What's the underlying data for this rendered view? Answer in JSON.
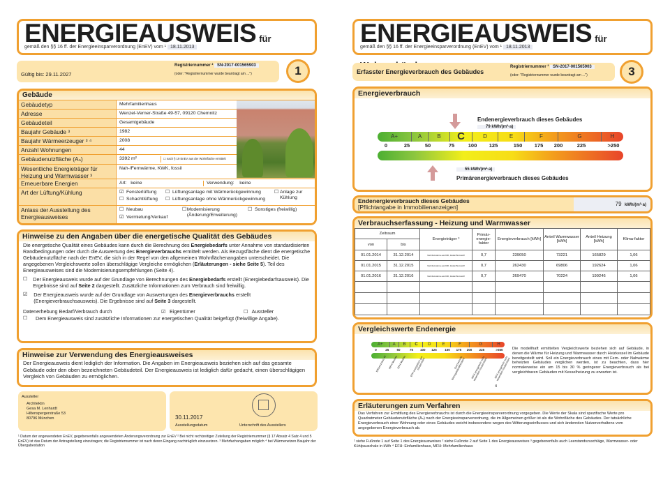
{
  "page1": {
    "title": "ENERGIEAUSWEIS",
    "title_suffix": "für Wohngebäude",
    "subtitle": "gemäß den §§ 16 ff. der Energieeinsparverordnung (EnEV) vom ¹",
    "enev_date": "18.11.2013",
    "valid_until": "Gültig bis: 29.11.2027",
    "reg_label": "Registriernummer ²",
    "reg_number": "SN-2017-001565903",
    "reg_note": "(oder: \"Registriernummer wurde beantragt am ...\")",
    "page_number": "1",
    "building": {
      "heading": "Gebäude",
      "rows": [
        {
          "label": "Gebäudetyp",
          "value": "Mehrfamilienhaus"
        },
        {
          "label": "Adresse",
          "value": "Wenzel-Verner-Straße 49-57, 09120 Chemnitz"
        },
        {
          "label": "Gebäudeteil",
          "value": "Gesamtgebäude"
        },
        {
          "label": "Baujahr Gebäude ³",
          "value": "1982"
        },
        {
          "label": "Baujahr Wärmeerzeuger ³ ⁴",
          "value": "2008"
        },
        {
          "label": "Anzahl Wohnungen",
          "value": "44"
        },
        {
          "label": "Gebäudenutzfläche (Aₙ)",
          "value": "3392 m²",
          "note": "nach § 19 EnEV aus der Wohnfläche ermittelt",
          "note_checked": false
        },
        {
          "label": "Wesentliche Energieträger für Heizung und Warmwasser ³",
          "value": "Nah-/Fernwärme, KWK, fossil"
        }
      ],
      "renewable": {
        "label": "Erneuerbare Energien",
        "art_label": "Art:",
        "art": "keine",
        "use_label": "Verwendung:",
        "use": "keine"
      },
      "ventilation": {
        "label": "Art der Lüftung/Kühlung",
        "options": [
          {
            "label": "Fensterlüftung",
            "checked": true
          },
          {
            "label": "Lüftungsanlage mit Wärmerückgewinnung",
            "checked": false
          },
          {
            "label": "Anlage zur Kühlung",
            "checked": false
          },
          {
            "label": "Schachtlüftung",
            "checked": false
          },
          {
            "label": "Lüftungsanlage ohne Wärmerückgewinnung",
            "checked": false
          }
        ]
      },
      "occasion": {
        "label": "Anlass der Ausstellung des Energieausweises",
        "options": [
          {
            "label": "Neubau",
            "checked": false
          },
          {
            "label": "Modernisierung (Änderung/Erweiterung)",
            "checked": false
          },
          {
            "label": "Sonstiges (freiwillig)",
            "checked": false
          },
          {
            "label": "Vermietung/Verkauf",
            "checked": true
          }
        ]
      }
    },
    "notes": {
      "heading": "Hinweise zu den Angaben über die energetische Qualität des Gebäudes",
      "intro": "Die energetische Qualität eines Gebäudes kann durch die Berechnung des Energiebedarfs unter Annahme von standardisierten Randbedingungen oder durch die Auswertung des Energieverbrauchs ermittelt werden. Als Bezugsfläche dient die energetische Gebäudenutzfläche nach der EnEV, die sich in der Regel von den allgemeinen Wohnflächenangaben unterscheidet. Die angegebenen Vergleichswerte sollen überschlägige Vergleiche ermöglichen (Erläuterungen - siehe Seite 5). Teil des Energieausweises sind die Modernisierungsempfehlungen (Seite 4).",
      "option_demand": {
        "checked": false,
        "text": "Der Energieausweis wurde auf der Grundlage von Berechnungen des Energiebedarfs erstellt (Energiebedarfsausweis). Die Ergebnisse sind auf Seite 2 dargestellt. Zusätzliche Informationen zum Verbrauch sind freiwillig."
      },
      "option_consumption": {
        "checked": true,
        "text": "Der Energieausweis wurde auf der Grundlage von Auswertungen des Energieverbrauchs erstellt (Energieverbrauchsausweis). Die Ergebnisse sind auf Seite 3 dargestellt."
      },
      "data_collection": "Datenerhebung Bedarf/Verbrauch durch",
      "owner": "Eigentümer",
      "owner_checked": true,
      "issuer": "Aussteller",
      "issuer_checked": false,
      "additional": "Dem Energieausweis sind zusätzliche Informationen zur energetischen Qualität beigefügt (freiwillige Angabe).",
      "additional_checked": false
    },
    "usage": {
      "heading": "Hinweise zur Verwendung des Energieausweises",
      "text": "Der Energieausweis dient lediglich der Information. Die Angaben im Energieausweis beziehen sich auf das gesamte Gebäude oder den oben bezeichneten Gebäudeteil. Der Energieausweis ist lediglich dafür gedacht, einen überschlägigen Vergleich von Gebäuden zu ermöglichen."
    },
    "issuer": {
      "label": "Aussteller",
      "lines": [
        "Architektin",
        "Gesa M. Lenhardt",
        "Hiltenspergerstraße 53",
        "80796 München"
      ]
    },
    "issue_date": "30.11.2017",
    "issue_date_label": "Ausstellungsdatum",
    "signature_label": "Unterschrift des Ausstellers",
    "footnotes": "¹ Datum der angewendeten EnEV, gegebenenfalls angewendeten Änderungsverordnung zur EnEV   ² Bei nicht rechtzeitiger Zuteilung der Registriernummer (§ 17 Absatz 4 Satz 4 und 5 EnEV) ist das Datum der Antragstellung einzutragen; die Registriernummer ist nach deren Eingang nachträglich einzusetzen.   ³ Mehrfachangaben möglich   ⁴ bei Wärmenetzen Baujahr der Übergabestation"
  },
  "page2": {
    "title": "ENERGIEAUSWEIS",
    "title_suffix": "für Wohngebäude",
    "subtitle": "gemäß den §§ 16 ff. der Energieeinsparverordnung (EnEV) vom ¹",
    "enev_date": "18.11.2013",
    "section_title": "Erfasster Energieverbrauch des Gebäudes",
    "reg_label": "Registriernummer ²",
    "reg_number": "SN-2017-001565903",
    "reg_note": "(oder: \"Registriernummer wurde beantragt am ...\")",
    "page_number": "3",
    "consumption": {
      "heading": "Energieverbrauch",
      "final_label": "Endenergieverbrauch dieses Gebäudes",
      "final_value": 79,
      "final_unit": "kWh/(m²·a)",
      "primary_label": "Primärenergieverbrauch dieses Gebäudes",
      "primary_value": 55,
      "primary_unit": "kWh/(m²·a)",
      "classes": [
        "A+",
        "A",
        "B",
        "C",
        "D",
        "E",
        "F",
        "G",
        "H"
      ],
      "current_class": "C",
      "ticks": [
        "0",
        "25",
        "50",
        "75",
        "100",
        "125",
        "150",
        "175",
        "200",
        "225",
        ">250"
      ]
    },
    "final_box": {
      "title": "Endenergieverbrauch dieses Gebäudes",
      "subtitle": "[Pflichtangabe in Immobilienanzeigen]",
      "value": "79",
      "unit": "kWh/(m²·a)"
    },
    "records": {
      "heading": "Verbrauchserfassung - Heizung und Warmwasser",
      "headers": {
        "period": "Zeitraum",
        "from": "von",
        "to": "bis",
        "carrier": "Energieträger ³",
        "factor": "Primär-energie-faktor",
        "consumption": "Energieverbrauch [kWh]",
        "hot_water": "Anteil Warmwasser [kWh]",
        "heating": "Anteil Heizung [kWh]",
        "climate": "Klima-faktor"
      },
      "rows": [
        {
          "from": "01.01.2014",
          "to": "31.12.2014",
          "carrier": "Nah-/Fernwärme aus KWK, fossiler Brennstoff",
          "factor": "0,7",
          "consumption": "239050",
          "hot_water": "73221",
          "heating": "165829",
          "climate": "1,06"
        },
        {
          "from": "01.01.2015",
          "to": "31.12.2015",
          "carrier": "Nah-/Fernwärme aus KWK, fossiler Brennstoff",
          "factor": "0,7",
          "consumption": "262430",
          "hot_water": "69806",
          "heating": "192624",
          "climate": "1,06"
        },
        {
          "from": "01.01.2016",
          "to": "31.12.2016",
          "carrier": "Nah-/Fernwärme aus KWK, fossiler Brennstoff",
          "factor": "0,7",
          "consumption": "269470",
          "hot_water": "70224",
          "heating": "199246",
          "climate": "1,06"
        }
      ]
    },
    "comparison": {
      "heading": "Vergleichswerte Endenergie",
      "references": [
        "Effizienzhaus 40",
        "MFH Neubau",
        "EFH Neubau",
        "EFH energetisch gut modernisiert",
        "Durchschnitt Wohngebäudebestand",
        "MFH energetisch nicht wesentlich modernisiert",
        "EFH energetisch nicht wesentlich modernisiert"
      ],
      "footnote_mark": "4",
      "text": "Die modellhaft ermittelten Vergleichswerte beziehen sich auf Gebäude, in denen die Wärme für Heizung und Warmwasser durch Heizkessel im Gebäude bereitgestellt wird. Soll ein Energieverbrauch eines mit Fern- oder Nahwärme beheizten Gebäudes verglichen werden, ist zu beachten, dass hier normalerweise ein um 15 bis 30 % geringerer Energieverbrauch als bei vergleichbaren Gebäuden mit Kesselheizung zu erwarten ist."
    },
    "explanation": {
      "heading": "Erläuterungen zum Verfahren",
      "text": "Das Verfahren zur Ermittlung des Energieverbrauchs ist durch die Energieeinsparverordnung vorgegeben. Die Werte der Skala sind spezifische Werte pro Quadratmeter Gebäudenutzfläche (Aₙ) nach der Energieeinsparverordnung, die im Allgemeinen größer ist als die Wohnfläche des Gebäudes. Der tatsächliche Energieverbrauch einer Wohnung oder eines Gebäudes weicht insbesondere wegen des Witterungseinflusses und sich ändernden Nutzerverhaltens vom angegebenen Energieverbrauch ab."
    },
    "footnotes": "¹ siehe Fußnote 1 auf Seite 1 des Energieausweises   ² siehe Fußnote 2 auf Seite 1 des Energieausweises   ³ gegebenenfalls auch Leerstandszuschläge, Warmwasser- oder Kühlpauschale in kWh   ⁴ EFH: Einfamilienhaus, MFH: Mehrfamilienhaus"
  },
  "colors": {
    "accent": "#f0a030",
    "band": "#fde5ae",
    "label_bg": "#fbdfa6",
    "arrow": "#d49a9a"
  }
}
